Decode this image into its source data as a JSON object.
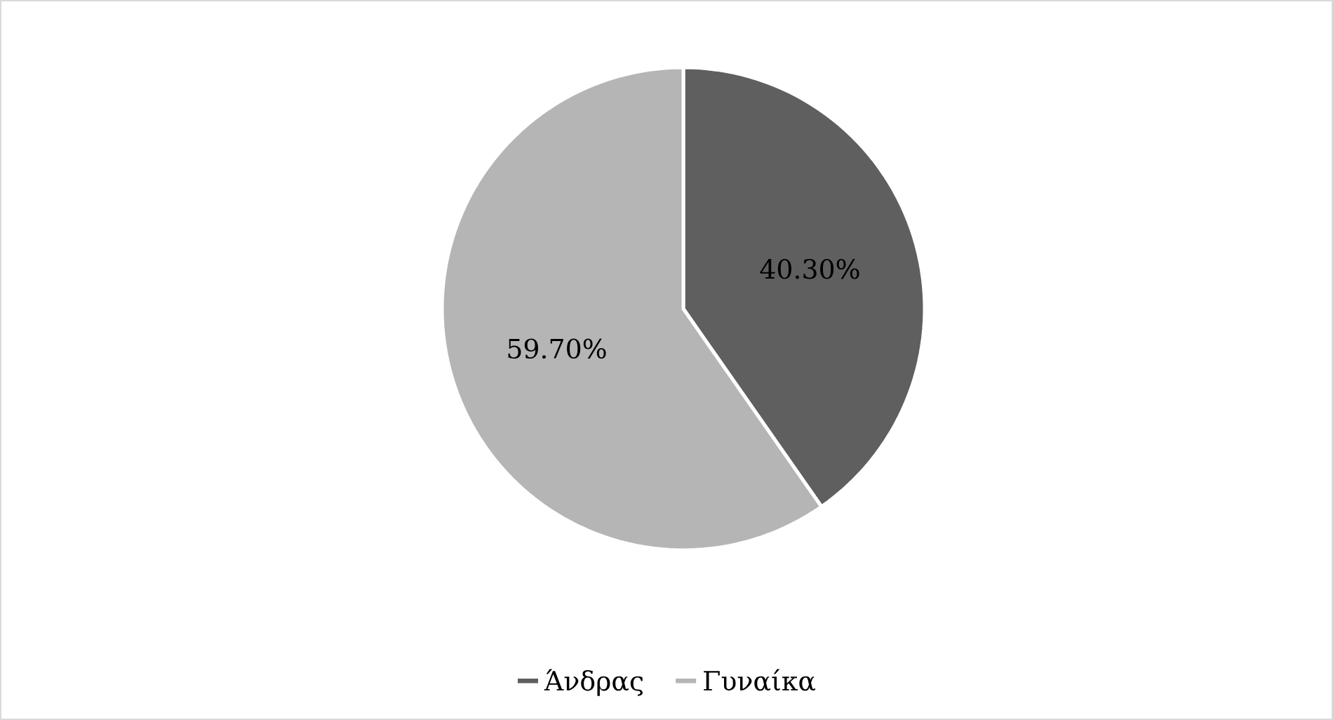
{
  "chart_data": {
    "type": "pie",
    "categories": [
      "Άνδρας",
      "Γυναίκα"
    ],
    "values": [
      40.3,
      59.7
    ],
    "colors": [
      "#5f5f5f",
      "#b5b5b5"
    ],
    "value_labels": [
      "40.30%",
      "59.70%"
    ],
    "legend": "bottom"
  }
}
